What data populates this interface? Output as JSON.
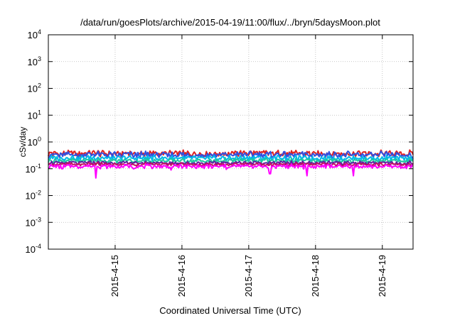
{
  "chart_data": {
    "type": "line",
    "title": "/data/run/goesPlots/archive/2015-04-19/11:00/flux/../bryn/5daysMoon.plot",
    "xlabel": "Coordinated Universal Time (UTC)",
    "ylabel": "cSv/day",
    "y_scale": "log",
    "ylim": [
      0.0001,
      10000
    ],
    "y_ticks": [
      {
        "base": "10",
        "exp": "-4",
        "value": 0.0001
      },
      {
        "base": "10",
        "exp": "-3",
        "value": 0.001
      },
      {
        "base": "10",
        "exp": "-2",
        "value": 0.01
      },
      {
        "base": "10",
        "exp": "-1",
        "value": 0.1
      },
      {
        "base": "10",
        "exp": "0",
        "value": 1
      },
      {
        "base": "10",
        "exp": "1",
        "value": 10
      },
      {
        "base": "10",
        "exp": "2",
        "value": 100
      },
      {
        "base": "10",
        "exp": "3",
        "value": 1000
      },
      {
        "base": "10",
        "exp": "4",
        "value": 10000
      }
    ],
    "xlim": [
      "2015-04-14 00:00",
      "2015-04-19 11:00"
    ],
    "x_ticks": [
      {
        "label": "2015-4-15",
        "day": 1
      },
      {
        "label": "2015-4-16",
        "day": 2
      },
      {
        "label": "2015-4-17",
        "day": 3
      },
      {
        "label": "2015-4-18",
        "day": 4
      },
      {
        "label": "2015-4-19",
        "day": 5
      }
    ],
    "x_range_days": [
      0,
      5.46
    ],
    "grid": true,
    "series": [
      {
        "color": "#e02020",
        "level": 0.37,
        "amp": 0.18,
        "dips": []
      },
      {
        "color": "#3050e0",
        "level": 0.33,
        "amp": 0.18,
        "dips": []
      },
      {
        "color": "#00b8e8",
        "level": 0.25,
        "amp": 0.15,
        "dips": []
      },
      {
        "color": "#20c8a0",
        "level": 0.2,
        "amp": 0.12,
        "dips": []
      },
      {
        "color": "#6020a0",
        "level": 0.165,
        "amp": 0.1,
        "dips": []
      },
      {
        "color": "#c01060",
        "level": 0.145,
        "amp": 0.1,
        "dips": []
      },
      {
        "color": "#ff00ff",
        "level": 0.122,
        "amp": 0.12,
        "dips": [
          [
            0.71,
            0.045
          ],
          [
            1.84,
            0.09
          ],
          [
            3.32,
            0.065
          ],
          [
            3.87,
            0.055
          ],
          [
            4.57,
            0.055
          ],
          [
            0.21,
            0.1
          ],
          [
            2.66,
            0.095
          ]
        ]
      }
    ]
  }
}
